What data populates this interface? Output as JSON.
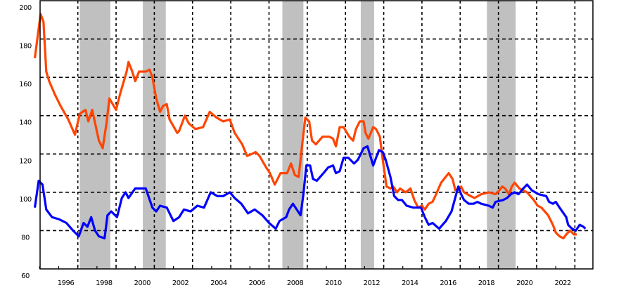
{
  "chart_data": {
    "type": "line",
    "title": "",
    "xlabel": "",
    "ylabel": "",
    "ylim": [
      60,
      200
    ],
    "xlim": [
      1994.7,
      2023.6
    ],
    "grid": true,
    "legend": null,
    "y_ticks": [
      "60",
      "80",
      "100",
      "120",
      "140",
      "160",
      "180",
      "200"
    ],
    "x_ticks": [
      "1996",
      "1998",
      "2000",
      "2002",
      "2004",
      "2006",
      "2008",
      "2010",
      "2012",
      "2014",
      "2016",
      "2018",
      "2020",
      "2022"
    ],
    "shaded_regions": [
      {
        "start": 1997.1,
        "end": 1998.7
      },
      {
        "start": 2000.4,
        "end": 2001.6
      },
      {
        "start": 2007.7,
        "end": 2008.8
      },
      {
        "start": 2011.8,
        "end": 2012.5
      },
      {
        "start": 2018.4,
        "end": 2019.9
      }
    ],
    "series": [
      {
        "name": "Orange series",
        "color": "#ff4500",
        "points": [
          [
            1994.75,
            170
          ],
          [
            1995.05,
            193
          ],
          [
            1995.2,
            189
          ],
          [
            1995.35,
            163
          ],
          [
            1995.5,
            158
          ],
          [
            1995.8,
            151
          ],
          [
            1996.1,
            145
          ],
          [
            1996.5,
            138
          ],
          [
            1996.85,
            130
          ],
          [
            1997.1,
            141
          ],
          [
            1997.4,
            143
          ],
          [
            1997.55,
            137
          ],
          [
            1997.75,
            143
          ],
          [
            1998.1,
            127
          ],
          [
            1998.3,
            123
          ],
          [
            1998.5,
            136
          ],
          [
            1998.65,
            149
          ],
          [
            1999.0,
            143
          ],
          [
            1999.2,
            151
          ],
          [
            1999.55,
            163
          ],
          [
            1999.65,
            168
          ],
          [
            1999.85,
            163
          ],
          [
            2000.0,
            158
          ],
          [
            2000.2,
            163
          ],
          [
            2000.55,
            163
          ],
          [
            2000.75,
            164
          ],
          [
            2000.9,
            160
          ],
          [
            2001.1,
            149
          ],
          [
            2001.3,
            142
          ],
          [
            2001.45,
            145
          ],
          [
            2001.65,
            146
          ],
          [
            2001.8,
            138
          ],
          [
            2002.2,
            131
          ],
          [
            2002.3,
            132
          ],
          [
            2002.6,
            140
          ],
          [
            2002.8,
            136
          ],
          [
            2003.15,
            133
          ],
          [
            2003.55,
            134
          ],
          [
            2003.9,
            142
          ],
          [
            2004.25,
            139
          ],
          [
            2004.6,
            137
          ],
          [
            2004.95,
            138
          ],
          [
            2005.2,
            131
          ],
          [
            2005.6,
            125
          ],
          [
            2005.85,
            119
          ],
          [
            2006.1,
            120
          ],
          [
            2006.3,
            121
          ],
          [
            2006.5,
            119
          ],
          [
            2006.85,
            113
          ],
          [
            2007.05,
            110
          ],
          [
            2007.3,
            104
          ],
          [
            2007.4,
            106
          ],
          [
            2007.6,
            110
          ],
          [
            2007.95,
            110
          ],
          [
            2008.15,
            115
          ],
          [
            2008.35,
            109
          ],
          [
            2008.55,
            108
          ],
          [
            2008.75,
            126
          ],
          [
            2008.9,
            139
          ],
          [
            2009.1,
            137
          ],
          [
            2009.25,
            127
          ],
          [
            2009.45,
            125
          ],
          [
            2009.8,
            129
          ],
          [
            2010.15,
            129
          ],
          [
            2010.35,
            128
          ],
          [
            2010.5,
            124
          ],
          [
            2010.7,
            134
          ],
          [
            2010.9,
            134
          ],
          [
            2011.2,
            129
          ],
          [
            2011.4,
            127
          ],
          [
            2011.55,
            133
          ],
          [
            2011.75,
            137
          ],
          [
            2011.95,
            137
          ],
          [
            2012.05,
            131
          ],
          [
            2012.2,
            128
          ],
          [
            2012.45,
            134
          ],
          [
            2012.6,
            133
          ],
          [
            2012.8,
            129
          ],
          [
            2012.95,
            117
          ],
          [
            2013.15,
            103
          ],
          [
            2013.35,
            102
          ],
          [
            2013.5,
            103
          ],
          [
            2013.7,
            100
          ],
          [
            2013.85,
            102
          ],
          [
            2014.15,
            100
          ],
          [
            2014.4,
            102
          ],
          [
            2014.6,
            96
          ],
          [
            2014.8,
            92
          ],
          [
            2015.0,
            93
          ],
          [
            2015.15,
            91
          ],
          [
            2015.35,
            94
          ],
          [
            2015.55,
            95
          ],
          [
            2015.7,
            98
          ],
          [
            2016.0,
            105
          ],
          [
            2016.4,
            110
          ],
          [
            2016.6,
            107
          ],
          [
            2016.75,
            101
          ],
          [
            2017.05,
            103
          ],
          [
            2017.2,
            100
          ],
          [
            2017.55,
            98
          ],
          [
            2017.75,
            97
          ],
          [
            2018.1,
            99
          ],
          [
            2018.5,
            100
          ],
          [
            2018.85,
            99
          ],
          [
            2019.05,
            101
          ],
          [
            2019.2,
            103
          ],
          [
            2019.35,
            102
          ],
          [
            2019.55,
            99
          ],
          [
            2019.7,
            103
          ],
          [
            2019.85,
            105
          ],
          [
            2020.1,
            102
          ],
          [
            2020.5,
            100
          ],
          [
            2020.85,
            96
          ],
          [
            2021.05,
            93
          ],
          [
            2021.25,
            92
          ],
          [
            2021.6,
            88
          ],
          [
            2021.85,
            83
          ],
          [
            2022.0,
            79
          ],
          [
            2022.2,
            77
          ],
          [
            2022.4,
            76
          ],
          [
            2022.55,
            78
          ],
          [
            2022.75,
            80
          ],
          [
            2022.95,
            78
          ],
          [
            2023.1,
            78
          ]
        ]
      },
      {
        "name": "Blue series",
        "color": "#0000ff",
        "points": [
          [
            1994.75,
            92
          ],
          [
            1994.95,
            106
          ],
          [
            1995.15,
            104
          ],
          [
            1995.35,
            91
          ],
          [
            1995.65,
            87
          ],
          [
            1996.0,
            86
          ],
          [
            1996.4,
            84
          ],
          [
            1996.75,
            80
          ],
          [
            1997.05,
            77
          ],
          [
            1997.3,
            84
          ],
          [
            1997.5,
            82
          ],
          [
            1997.7,
            87
          ],
          [
            1997.9,
            80
          ],
          [
            1998.1,
            77
          ],
          [
            1998.4,
            76
          ],
          [
            1998.55,
            88
          ],
          [
            1998.75,
            90
          ],
          [
            1999.05,
            87
          ],
          [
            1999.3,
            97
          ],
          [
            1999.5,
            100
          ],
          [
            1999.65,
            97
          ],
          [
            2000.0,
            102
          ],
          [
            2000.55,
            102
          ],
          [
            2000.9,
            92
          ],
          [
            2001.1,
            90
          ],
          [
            2001.3,
            93
          ],
          [
            2001.65,
            92
          ],
          [
            2002.0,
            85
          ],
          [
            2002.3,
            87
          ],
          [
            2002.55,
            91
          ],
          [
            2002.9,
            90
          ],
          [
            2003.25,
            93
          ],
          [
            2003.6,
            92
          ],
          [
            2003.95,
            100
          ],
          [
            2004.3,
            98
          ],
          [
            2004.6,
            98
          ],
          [
            2004.95,
            100
          ],
          [
            2005.2,
            97
          ],
          [
            2005.55,
            94
          ],
          [
            2005.9,
            89
          ],
          [
            2006.25,
            91
          ],
          [
            2006.65,
            88
          ],
          [
            2007.0,
            84
          ],
          [
            2007.35,
            81
          ],
          [
            2007.55,
            85
          ],
          [
            2007.9,
            87
          ],
          [
            2008.05,
            91
          ],
          [
            2008.25,
            94
          ],
          [
            2008.45,
            91
          ],
          [
            2008.65,
            88
          ],
          [
            2008.8,
            99
          ],
          [
            2008.95,
            114
          ],
          [
            2009.15,
            114
          ],
          [
            2009.3,
            107
          ],
          [
            2009.5,
            106
          ],
          [
            2009.85,
            110
          ],
          [
            2010.1,
            113
          ],
          [
            2010.35,
            114
          ],
          [
            2010.5,
            110
          ],
          [
            2010.7,
            111
          ],
          [
            2010.9,
            118
          ],
          [
            2011.15,
            118
          ],
          [
            2011.45,
            115
          ],
          [
            2011.65,
            117
          ],
          [
            2011.95,
            123
          ],
          [
            2012.15,
            124
          ],
          [
            2012.3,
            119
          ],
          [
            2012.45,
            114
          ],
          [
            2012.75,
            122
          ],
          [
            2012.95,
            121
          ],
          [
            2013.1,
            117
          ],
          [
            2013.35,
            108
          ],
          [
            2013.55,
            98
          ],
          [
            2013.75,
            96
          ],
          [
            2013.95,
            96
          ],
          [
            2014.2,
            93
          ],
          [
            2014.55,
            92
          ],
          [
            2014.75,
            92
          ],
          [
            2014.95,
            92
          ],
          [
            2015.15,
            87
          ],
          [
            2015.35,
            83
          ],
          [
            2015.55,
            84
          ],
          [
            2015.9,
            81
          ],
          [
            2016.25,
            85
          ],
          [
            2016.55,
            90
          ],
          [
            2016.9,
            103
          ],
          [
            2017.05,
            99
          ],
          [
            2017.2,
            96
          ],
          [
            2017.45,
            94
          ],
          [
            2017.7,
            94
          ],
          [
            2017.9,
            95
          ],
          [
            2018.1,
            94
          ],
          [
            2018.5,
            93
          ],
          [
            2018.7,
            92
          ],
          [
            2018.85,
            95
          ],
          [
            2019.25,
            96
          ],
          [
            2019.45,
            97
          ],
          [
            2019.65,
            99
          ],
          [
            2019.85,
            100
          ],
          [
            2020.05,
            99
          ],
          [
            2020.3,
            102
          ],
          [
            2020.5,
            104
          ],
          [
            2020.75,
            101
          ],
          [
            2021.1,
            99
          ],
          [
            2021.5,
            98
          ],
          [
            2021.65,
            95
          ],
          [
            2021.85,
            94
          ],
          [
            2022.0,
            95
          ],
          [
            2022.2,
            92
          ],
          [
            2022.55,
            87
          ],
          [
            2022.65,
            83
          ],
          [
            2022.85,
            81
          ],
          [
            2023.05,
            80
          ],
          [
            2023.25,
            83
          ],
          [
            2023.45,
            82
          ],
          [
            2023.55,
            81
          ]
        ]
      }
    ]
  }
}
